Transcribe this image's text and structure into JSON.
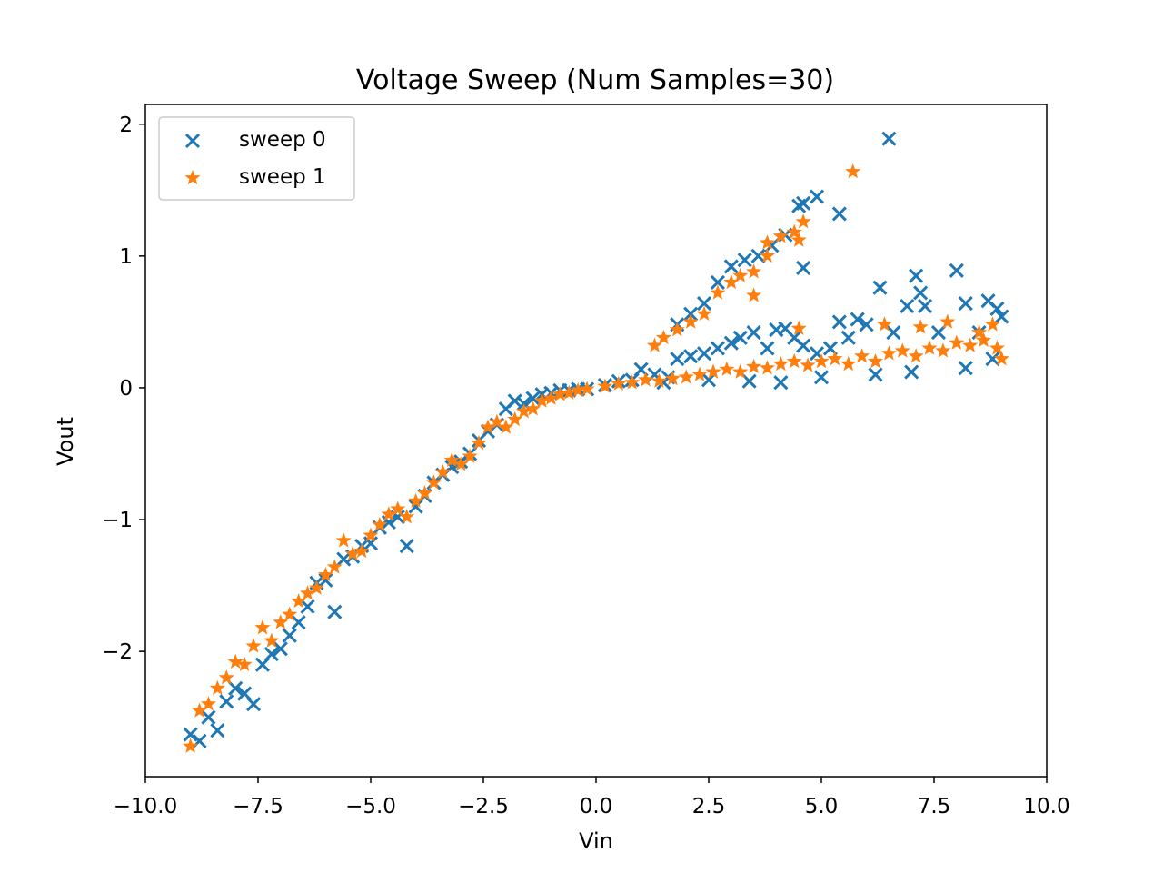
{
  "chart_data": {
    "type": "scatter",
    "title": "Voltage Sweep (Num Samples=30)",
    "xlabel": "Vin",
    "ylabel": "Vout",
    "xlim": [
      -10,
      10
    ],
    "ylim": [
      -2.95,
      2.15
    ],
    "x_ticks": [
      -10,
      -7.5,
      -5,
      -2.5,
      0,
      2.5,
      5,
      7.5,
      10
    ],
    "x_tick_labels": [
      "−10.0",
      "−7.5",
      "−5.0",
      "−2.5",
      "0.0",
      "2.5",
      "5.0",
      "7.5",
      "10.0"
    ],
    "y_ticks": [
      -2,
      -1,
      0,
      1,
      2
    ],
    "y_tick_labels": [
      "−2",
      "−1",
      "0",
      "1",
      "2"
    ],
    "grid": false,
    "legend_position": "top-left",
    "series": [
      {
        "name": "sweep 0",
        "marker": "x",
        "color": "#1f77b4",
        "points": [
          [
            -9.0,
            -2.63
          ],
          [
            -8.8,
            -2.68
          ],
          [
            -8.6,
            -2.5
          ],
          [
            -8.4,
            -2.6
          ],
          [
            -8.2,
            -2.38
          ],
          [
            -8.0,
            -2.28
          ],
          [
            -7.8,
            -2.32
          ],
          [
            -7.6,
            -2.4
          ],
          [
            -7.4,
            -2.1
          ],
          [
            -7.2,
            -2.02
          ],
          [
            -7.0,
            -1.98
          ],
          [
            -6.8,
            -1.88
          ],
          [
            -6.6,
            -1.78
          ],
          [
            -6.4,
            -1.66
          ],
          [
            -6.2,
            -1.48
          ],
          [
            -6.0,
            -1.46
          ],
          [
            -5.8,
            -1.7
          ],
          [
            -5.6,
            -1.3
          ],
          [
            -5.4,
            -1.28
          ],
          [
            -5.2,
            -1.2
          ],
          [
            -5.0,
            -1.18
          ],
          [
            -4.8,
            -1.06
          ],
          [
            -4.6,
            -1.02
          ],
          [
            -4.4,
            -0.98
          ],
          [
            -4.2,
            -1.2
          ],
          [
            -4.0,
            -0.9
          ],
          [
            -3.8,
            -0.82
          ],
          [
            -3.6,
            -0.72
          ],
          [
            -3.4,
            -0.66
          ],
          [
            -3.2,
            -0.6
          ],
          [
            -3.0,
            -0.56
          ],
          [
            -2.8,
            -0.5
          ],
          [
            -2.6,
            -0.4
          ],
          [
            -2.4,
            -0.33
          ],
          [
            -2.2,
            -0.28
          ],
          [
            -2.0,
            -0.16
          ],
          [
            -1.8,
            -0.1
          ],
          [
            -1.6,
            -0.12
          ],
          [
            -1.4,
            -0.08
          ],
          [
            -1.2,
            -0.05
          ],
          [
            -1.0,
            -0.04
          ],
          [
            -0.8,
            -0.02
          ],
          [
            -0.6,
            -0.02
          ],
          [
            -0.4,
            -0.01
          ],
          [
            -0.2,
            -0.01
          ],
          [
            0.2,
            0.02
          ],
          [
            0.5,
            0.05
          ],
          [
            0.8,
            0.06
          ],
          [
            1.0,
            0.14
          ],
          [
            1.3,
            0.1
          ],
          [
            1.6,
            0.08
          ],
          [
            1.8,
            0.22
          ],
          [
            2.1,
            0.24
          ],
          [
            2.4,
            0.26
          ],
          [
            2.7,
            0.3
          ],
          [
            3.0,
            0.34
          ],
          [
            3.2,
            0.38
          ],
          [
            3.5,
            0.42
          ],
          [
            3.8,
            0.3
          ],
          [
            4.0,
            0.44
          ],
          [
            4.2,
            0.45
          ],
          [
            4.4,
            0.38
          ],
          [
            4.6,
            0.32
          ],
          [
            4.9,
            0.26
          ],
          [
            5.2,
            0.3
          ],
          [
            5.4,
            0.5
          ],
          [
            5.6,
            0.38
          ],
          [
            5.8,
            0.52
          ],
          [
            6.0,
            0.48
          ],
          [
            6.3,
            0.76
          ],
          [
            6.6,
            0.42
          ],
          [
            6.9,
            0.62
          ],
          [
            7.1,
            0.85
          ],
          [
            7.2,
            0.72
          ],
          [
            7.3,
            0.62
          ],
          [
            7.6,
            0.42
          ],
          [
            8.0,
            0.89
          ],
          [
            8.2,
            0.64
          ],
          [
            8.5,
            0.42
          ],
          [
            8.7,
            0.66
          ],
          [
            8.9,
            0.6
          ],
          [
            9.0,
            0.54
          ],
          [
            1.8,
            0.48
          ],
          [
            2.1,
            0.56
          ],
          [
            2.4,
            0.64
          ],
          [
            2.7,
            0.8
          ],
          [
            3.0,
            0.92
          ],
          [
            3.3,
            0.97
          ],
          [
            3.6,
            1.0
          ],
          [
            3.9,
            1.08
          ],
          [
            4.2,
            1.16
          ],
          [
            4.5,
            1.38
          ],
          [
            4.6,
            1.4
          ],
          [
            4.9,
            1.45
          ],
          [
            5.4,
            1.32
          ],
          [
            4.6,
            0.91
          ],
          [
            6.5,
            1.89
          ],
          [
            1.5,
            0.04
          ],
          [
            2.5,
            0.06
          ],
          [
            3.4,
            0.05
          ],
          [
            4.1,
            0.04
          ],
          [
            5.0,
            0.08
          ],
          [
            6.2,
            0.1
          ],
          [
            7.0,
            0.12
          ],
          [
            8.2,
            0.15
          ],
          [
            8.8,
            0.22
          ]
        ]
      },
      {
        "name": "sweep 1",
        "marker": "star",
        "color": "#ff7f0e",
        "points": [
          [
            -9.0,
            -2.72
          ],
          [
            -8.8,
            -2.45
          ],
          [
            -8.6,
            -2.4
          ],
          [
            -8.4,
            -2.28
          ],
          [
            -8.2,
            -2.2
          ],
          [
            -8.0,
            -2.08
          ],
          [
            -7.8,
            -2.1
          ],
          [
            -7.6,
            -1.96
          ],
          [
            -7.4,
            -1.82
          ],
          [
            -7.2,
            -1.92
          ],
          [
            -7.0,
            -1.78
          ],
          [
            -6.8,
            -1.72
          ],
          [
            -6.6,
            -1.62
          ],
          [
            -6.4,
            -1.56
          ],
          [
            -6.2,
            -1.52
          ],
          [
            -6.0,
            -1.42
          ],
          [
            -5.8,
            -1.36
          ],
          [
            -5.6,
            -1.16
          ],
          [
            -5.4,
            -1.26
          ],
          [
            -5.2,
            -1.24
          ],
          [
            -5.0,
            -1.12
          ],
          [
            -4.8,
            -1.04
          ],
          [
            -4.6,
            -0.96
          ],
          [
            -4.4,
            -0.92
          ],
          [
            -4.2,
            -0.98
          ],
          [
            -4.0,
            -0.86
          ],
          [
            -3.8,
            -0.8
          ],
          [
            -3.6,
            -0.72
          ],
          [
            -3.4,
            -0.64
          ],
          [
            -3.2,
            -0.55
          ],
          [
            -3.0,
            -0.58
          ],
          [
            -2.8,
            -0.52
          ],
          [
            -2.6,
            -0.42
          ],
          [
            -2.4,
            -0.3
          ],
          [
            -2.2,
            -0.26
          ],
          [
            -2.0,
            -0.3
          ],
          [
            -1.8,
            -0.24
          ],
          [
            -1.6,
            -0.18
          ],
          [
            -1.4,
            -0.16
          ],
          [
            -1.2,
            -0.1
          ],
          [
            -1.0,
            -0.08
          ],
          [
            -0.8,
            -0.05
          ],
          [
            -0.6,
            -0.04
          ],
          [
            -0.4,
            -0.02
          ],
          [
            -0.2,
            -0.01
          ],
          [
            0.2,
            0.01
          ],
          [
            0.5,
            0.03
          ],
          [
            0.8,
            0.04
          ],
          [
            1.1,
            0.06
          ],
          [
            1.4,
            0.05
          ],
          [
            1.7,
            0.07
          ],
          [
            2.0,
            0.08
          ],
          [
            2.3,
            0.1
          ],
          [
            2.6,
            0.12
          ],
          [
            2.9,
            0.14
          ],
          [
            3.2,
            0.12
          ],
          [
            3.5,
            0.16
          ],
          [
            3.8,
            0.15
          ],
          [
            4.1,
            0.18
          ],
          [
            4.4,
            0.2
          ],
          [
            4.7,
            0.17
          ],
          [
            5.0,
            0.2
          ],
          [
            5.3,
            0.22
          ],
          [
            5.6,
            0.18
          ],
          [
            5.9,
            0.24
          ],
          [
            6.2,
            0.2
          ],
          [
            6.5,
            0.26
          ],
          [
            6.8,
            0.28
          ],
          [
            7.1,
            0.24
          ],
          [
            7.4,
            0.3
          ],
          [
            7.7,
            0.28
          ],
          [
            8.0,
            0.34
          ],
          [
            8.3,
            0.32
          ],
          [
            8.6,
            0.36
          ],
          [
            8.9,
            0.3
          ],
          [
            9.0,
            0.22
          ],
          [
            1.3,
            0.32
          ],
          [
            1.5,
            0.38
          ],
          [
            1.8,
            0.44
          ],
          [
            2.1,
            0.5
          ],
          [
            2.4,
            0.56
          ],
          [
            2.7,
            0.72
          ],
          [
            3.0,
            0.8
          ],
          [
            3.2,
            0.85
          ],
          [
            3.5,
            0.88
          ],
          [
            3.8,
            1.1
          ],
          [
            4.1,
            1.15
          ],
          [
            4.4,
            1.18
          ],
          [
            4.6,
            1.26
          ],
          [
            4.5,
            1.12
          ],
          [
            3.5,
            0.7
          ],
          [
            3.8,
            1.0
          ],
          [
            5.7,
            1.64
          ],
          [
            4.5,
            0.45
          ],
          [
            6.4,
            0.48
          ],
          [
            7.2,
            0.46
          ],
          [
            8.5,
            0.42
          ],
          [
            8.8,
            0.48
          ],
          [
            7.8,
            0.5
          ]
        ]
      }
    ]
  }
}
